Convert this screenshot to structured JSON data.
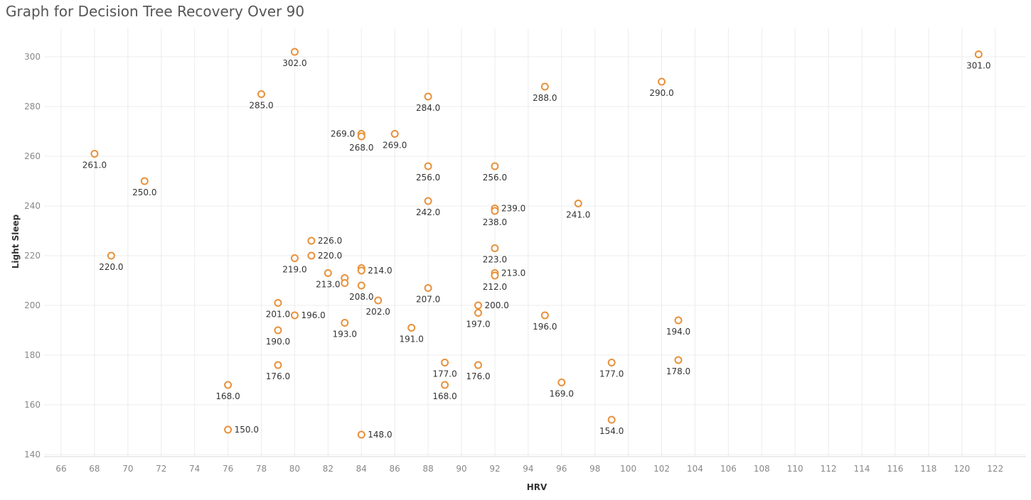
{
  "title": "Graph for Decision Tree Recovery Over 90",
  "chart_data": {
    "type": "scatter",
    "title": "Graph for Decision Tree Recovery Over 90",
    "xlabel": "HRV",
    "ylabel": "Light Sleep",
    "xlim": [
      65,
      124
    ],
    "ylim": [
      138,
      305
    ],
    "xticks": [
      66,
      68,
      70,
      72,
      74,
      76,
      78,
      80,
      82,
      84,
      86,
      88,
      90,
      92,
      94,
      96,
      98,
      100,
      102,
      104,
      106,
      108,
      110,
      112,
      114,
      116,
      118,
      120,
      122
    ],
    "yticks": [
      140,
      160,
      180,
      200,
      220,
      240,
      260,
      280,
      300
    ],
    "grid": true,
    "color": "#e8913a",
    "points": [
      {
        "x": 80,
        "y": 302,
        "label": "302.0",
        "pos": "below"
      },
      {
        "x": 121,
        "y": 301,
        "label": "301.0",
        "pos": "below"
      },
      {
        "x": 102,
        "y": 290,
        "label": "290.0",
        "pos": "below"
      },
      {
        "x": 95,
        "y": 288,
        "label": "288.0",
        "pos": "below"
      },
      {
        "x": 78,
        "y": 285,
        "label": "285.0",
        "pos": "below"
      },
      {
        "x": 88,
        "y": 284,
        "label": "284.0",
        "pos": "below"
      },
      {
        "x": 84,
        "y": 269,
        "label": "269.0",
        "pos": "left"
      },
      {
        "x": 84,
        "y": 268,
        "label": "268.0",
        "pos": "below"
      },
      {
        "x": 86,
        "y": 269,
        "label": "269.0",
        "pos": "below"
      },
      {
        "x": 68,
        "y": 261,
        "label": "261.0",
        "pos": "below"
      },
      {
        "x": 88,
        "y": 256,
        "label": "256.0",
        "pos": "below"
      },
      {
        "x": 92,
        "y": 256,
        "label": "256.0",
        "pos": "below"
      },
      {
        "x": 71,
        "y": 250,
        "label": "250.0",
        "pos": "below"
      },
      {
        "x": 88,
        "y": 242,
        "label": "242.0",
        "pos": "below"
      },
      {
        "x": 97,
        "y": 241,
        "label": "241.0",
        "pos": "below"
      },
      {
        "x": 92,
        "y": 239,
        "label": "239.0",
        "pos": "right"
      },
      {
        "x": 92,
        "y": 238,
        "label": "238.0",
        "pos": "below"
      },
      {
        "x": 81,
        "y": 226,
        "label": "226.0",
        "pos": "right"
      },
      {
        "x": 92,
        "y": 223,
        "label": "223.0",
        "pos": "below"
      },
      {
        "x": 69,
        "y": 220,
        "label": "220.0",
        "pos": "below"
      },
      {
        "x": 81,
        "y": 220,
        "label": "220.0",
        "pos": "right"
      },
      {
        "x": 80,
        "y": 219,
        "label": "219.0",
        "pos": "below"
      },
      {
        "x": 84,
        "y": 215,
        "label": "",
        "pos": "none"
      },
      {
        "x": 84,
        "y": 214,
        "label": "214.0",
        "pos": "right"
      },
      {
        "x": 82,
        "y": 213,
        "label": "213.0",
        "pos": "below"
      },
      {
        "x": 92,
        "y": 213,
        "label": "213.0",
        "pos": "right"
      },
      {
        "x": 92,
        "y": 212,
        "label": "212.0",
        "pos": "below"
      },
      {
        "x": 83,
        "y": 211,
        "label": "",
        "pos": "none"
      },
      {
        "x": 83,
        "y": 209,
        "label": "",
        "pos": "none"
      },
      {
        "x": 84,
        "y": 208,
        "label": "208.0",
        "pos": "below"
      },
      {
        "x": 88,
        "y": 207,
        "label": "207.0",
        "pos": "below"
      },
      {
        "x": 85,
        "y": 202,
        "label": "202.0",
        "pos": "below"
      },
      {
        "x": 79,
        "y": 201,
        "label": "201.0",
        "pos": "below"
      },
      {
        "x": 91,
        "y": 200,
        "label": "200.0",
        "pos": "right"
      },
      {
        "x": 91,
        "y": 197,
        "label": "197.0",
        "pos": "below"
      },
      {
        "x": 80,
        "y": 196,
        "label": "196.0",
        "pos": "right"
      },
      {
        "x": 95,
        "y": 196,
        "label": "196.0",
        "pos": "below"
      },
      {
        "x": 103,
        "y": 194,
        "label": "194.0",
        "pos": "below"
      },
      {
        "x": 83,
        "y": 193,
        "label": "193.0",
        "pos": "below"
      },
      {
        "x": 87,
        "y": 191,
        "label": "191.0",
        "pos": "below"
      },
      {
        "x": 79,
        "y": 190,
        "label": "190.0",
        "pos": "below"
      },
      {
        "x": 103,
        "y": 178,
        "label": "178.0",
        "pos": "below"
      },
      {
        "x": 89,
        "y": 177,
        "label": "177.0",
        "pos": "below"
      },
      {
        "x": 99,
        "y": 177,
        "label": "177.0",
        "pos": "below"
      },
      {
        "x": 79,
        "y": 176,
        "label": "176.0",
        "pos": "below"
      },
      {
        "x": 91,
        "y": 176,
        "label": "176.0",
        "pos": "below"
      },
      {
        "x": 96,
        "y": 169,
        "label": "169.0",
        "pos": "below"
      },
      {
        "x": 76,
        "y": 168,
        "label": "168.0",
        "pos": "below"
      },
      {
        "x": 89,
        "y": 168,
        "label": "168.0",
        "pos": "below"
      },
      {
        "x": 99,
        "y": 154,
        "label": "154.0",
        "pos": "below"
      },
      {
        "x": 76,
        "y": 150,
        "label": "150.0",
        "pos": "right"
      },
      {
        "x": 84,
        "y": 148,
        "label": "148.0",
        "pos": "right"
      }
    ]
  }
}
